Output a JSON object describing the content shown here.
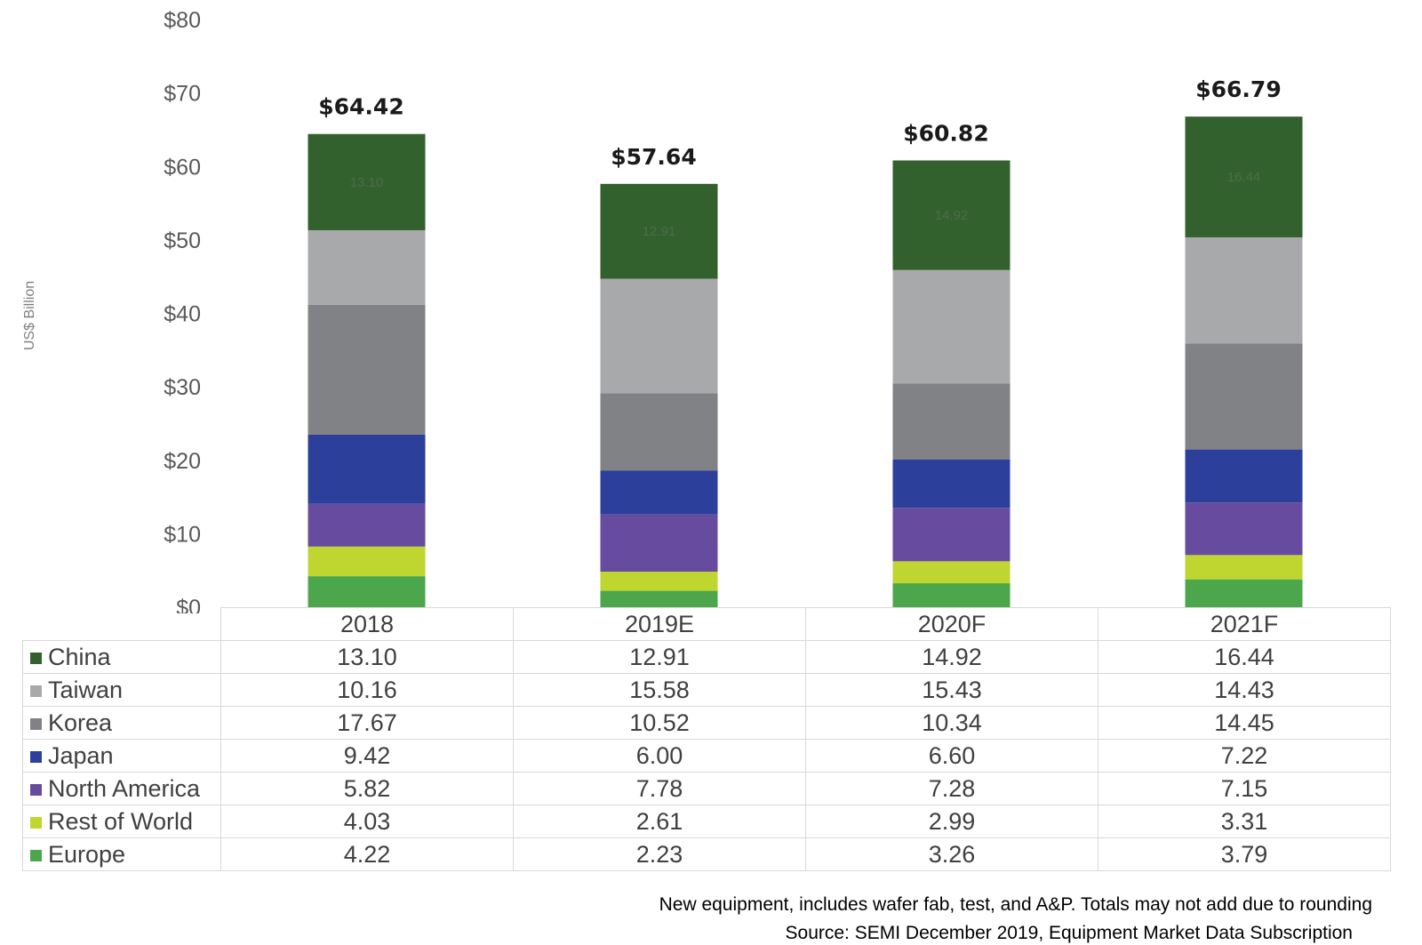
{
  "chart_data": {
    "type": "bar",
    "stacked": true,
    "categories": [
      "2018",
      "2019E",
      "2020F",
      "2021F"
    ],
    "ylabel": "US$ Billion",
    "ylim": [
      0,
      80
    ],
    "yticks": [
      "$0",
      "$10",
      "$20",
      "$30",
      "$40",
      "$50",
      "$60",
      "$70",
      "$80"
    ],
    "totals": [
      "$64.42",
      "$57.64",
      "$60.82",
      "$66.79"
    ],
    "series": [
      {
        "name": "Europe",
        "color": "#4ca64c",
        "values": [
          4.22,
          2.23,
          3.26,
          3.79
        ],
        "display": [
          "4.22",
          "2.23",
          "3.26",
          "3.79"
        ]
      },
      {
        "name": "Rest of World",
        "color": "#bfd630",
        "values": [
          4.03,
          2.61,
          2.99,
          3.31
        ],
        "display": [
          "4.03",
          "2.61",
          "2.99",
          "3.31"
        ]
      },
      {
        "name": "North America",
        "color": "#674b9e",
        "values": [
          5.82,
          7.78,
          7.28,
          7.15
        ],
        "display": [
          "5.82",
          "7.78",
          "7.28",
          "7.15"
        ]
      },
      {
        "name": "Japan",
        "color": "#2c3f9a",
        "values": [
          9.42,
          6.0,
          6.6,
          7.22
        ],
        "display": [
          "9.42",
          "6.00",
          "6.60",
          "7.22"
        ]
      },
      {
        "name": "Korea",
        "color": "#808285",
        "values": [
          17.67,
          10.52,
          10.34,
          14.45
        ],
        "display": [
          "17.67",
          "10.52",
          "10.34",
          "14.45"
        ]
      },
      {
        "name": "Taiwan",
        "color": "#a7a9ab",
        "values": [
          10.16,
          15.58,
          15.43,
          14.43
        ],
        "display": [
          "10.16",
          "15.58",
          "15.43",
          "14.43"
        ]
      },
      {
        "name": "China",
        "color": "#33612d",
        "values": [
          13.1,
          12.91,
          14.92,
          16.44
        ],
        "display": [
          "13.10",
          "12.91",
          "14.92",
          "16.44"
        ]
      }
    ],
    "table_order": [
      "China",
      "Taiwan",
      "Korea",
      "Japan",
      "North America",
      "Rest of World",
      "Europe"
    ],
    "grid": false,
    "legend": "data table below chart"
  },
  "footnote": {
    "line1": "New equipment, includes wafer fab, test, and A&P. Totals may not add due to rounding",
    "line2": "Source: SEMI December 2019, Equipment Market Data Subscription"
  }
}
